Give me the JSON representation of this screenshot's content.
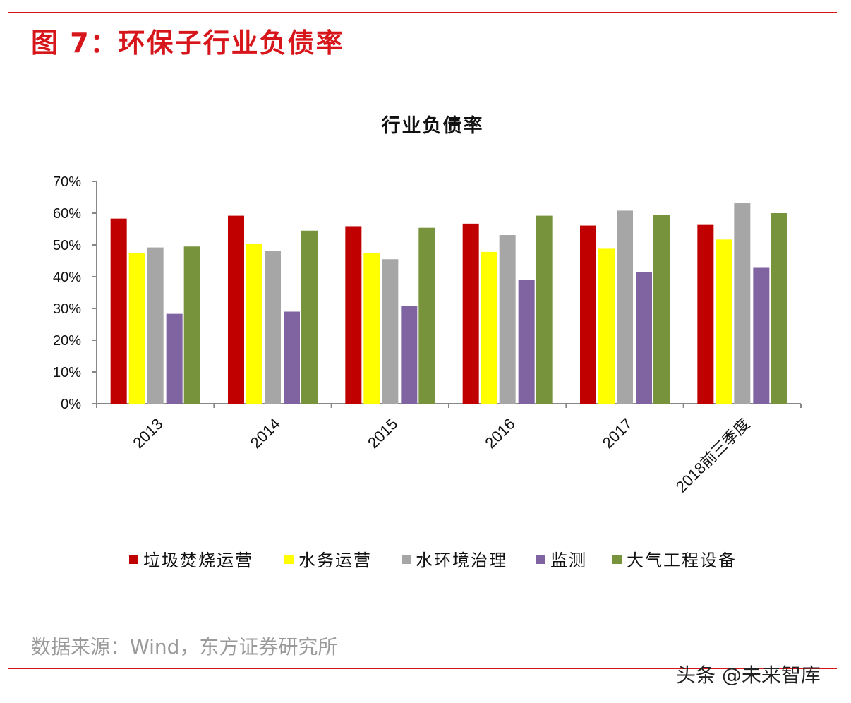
{
  "header": {
    "figure_title": "图 7：环保子行业负债率",
    "accent_color": "#d7161c"
  },
  "footer": {
    "source": "数据来源：Wind，东方证券研究所",
    "watermark": "头条 @未来智库"
  },
  "chart_data": {
    "type": "bar",
    "title": "行业负债率",
    "xlabel": "",
    "ylabel": "",
    "categories": [
      "2013",
      "2014",
      "2015",
      "2016",
      "2017",
      "2018前三季度"
    ],
    "y_ticks": [
      "0%",
      "10%",
      "20%",
      "30%",
      "40%",
      "50%",
      "60%",
      "70%"
    ],
    "ylim": [
      0,
      0.7
    ],
    "grid": false,
    "legend_position": "bottom",
    "series": [
      {
        "name": "垃圾焚烧运营",
        "color": "#c00000",
        "values": [
          0.583,
          0.592,
          0.559,
          0.567,
          0.561,
          0.563
        ]
      },
      {
        "name": "水务运营",
        "color": "#ffff00",
        "values": [
          0.474,
          0.504,
          0.474,
          0.478,
          0.488,
          0.517
        ]
      },
      {
        "name": "水环境治理",
        "color": "#a6a6a6",
        "values": [
          0.492,
          0.482,
          0.455,
          0.531,
          0.608,
          0.632
        ]
      },
      {
        "name": "监测",
        "color": "#8064a2",
        "values": [
          0.283,
          0.29,
          0.307,
          0.39,
          0.414,
          0.43
        ]
      },
      {
        "name": "大气工程设备",
        "color": "#77933c",
        "values": [
          0.495,
          0.545,
          0.554,
          0.592,
          0.595,
          0.6
        ]
      }
    ]
  }
}
